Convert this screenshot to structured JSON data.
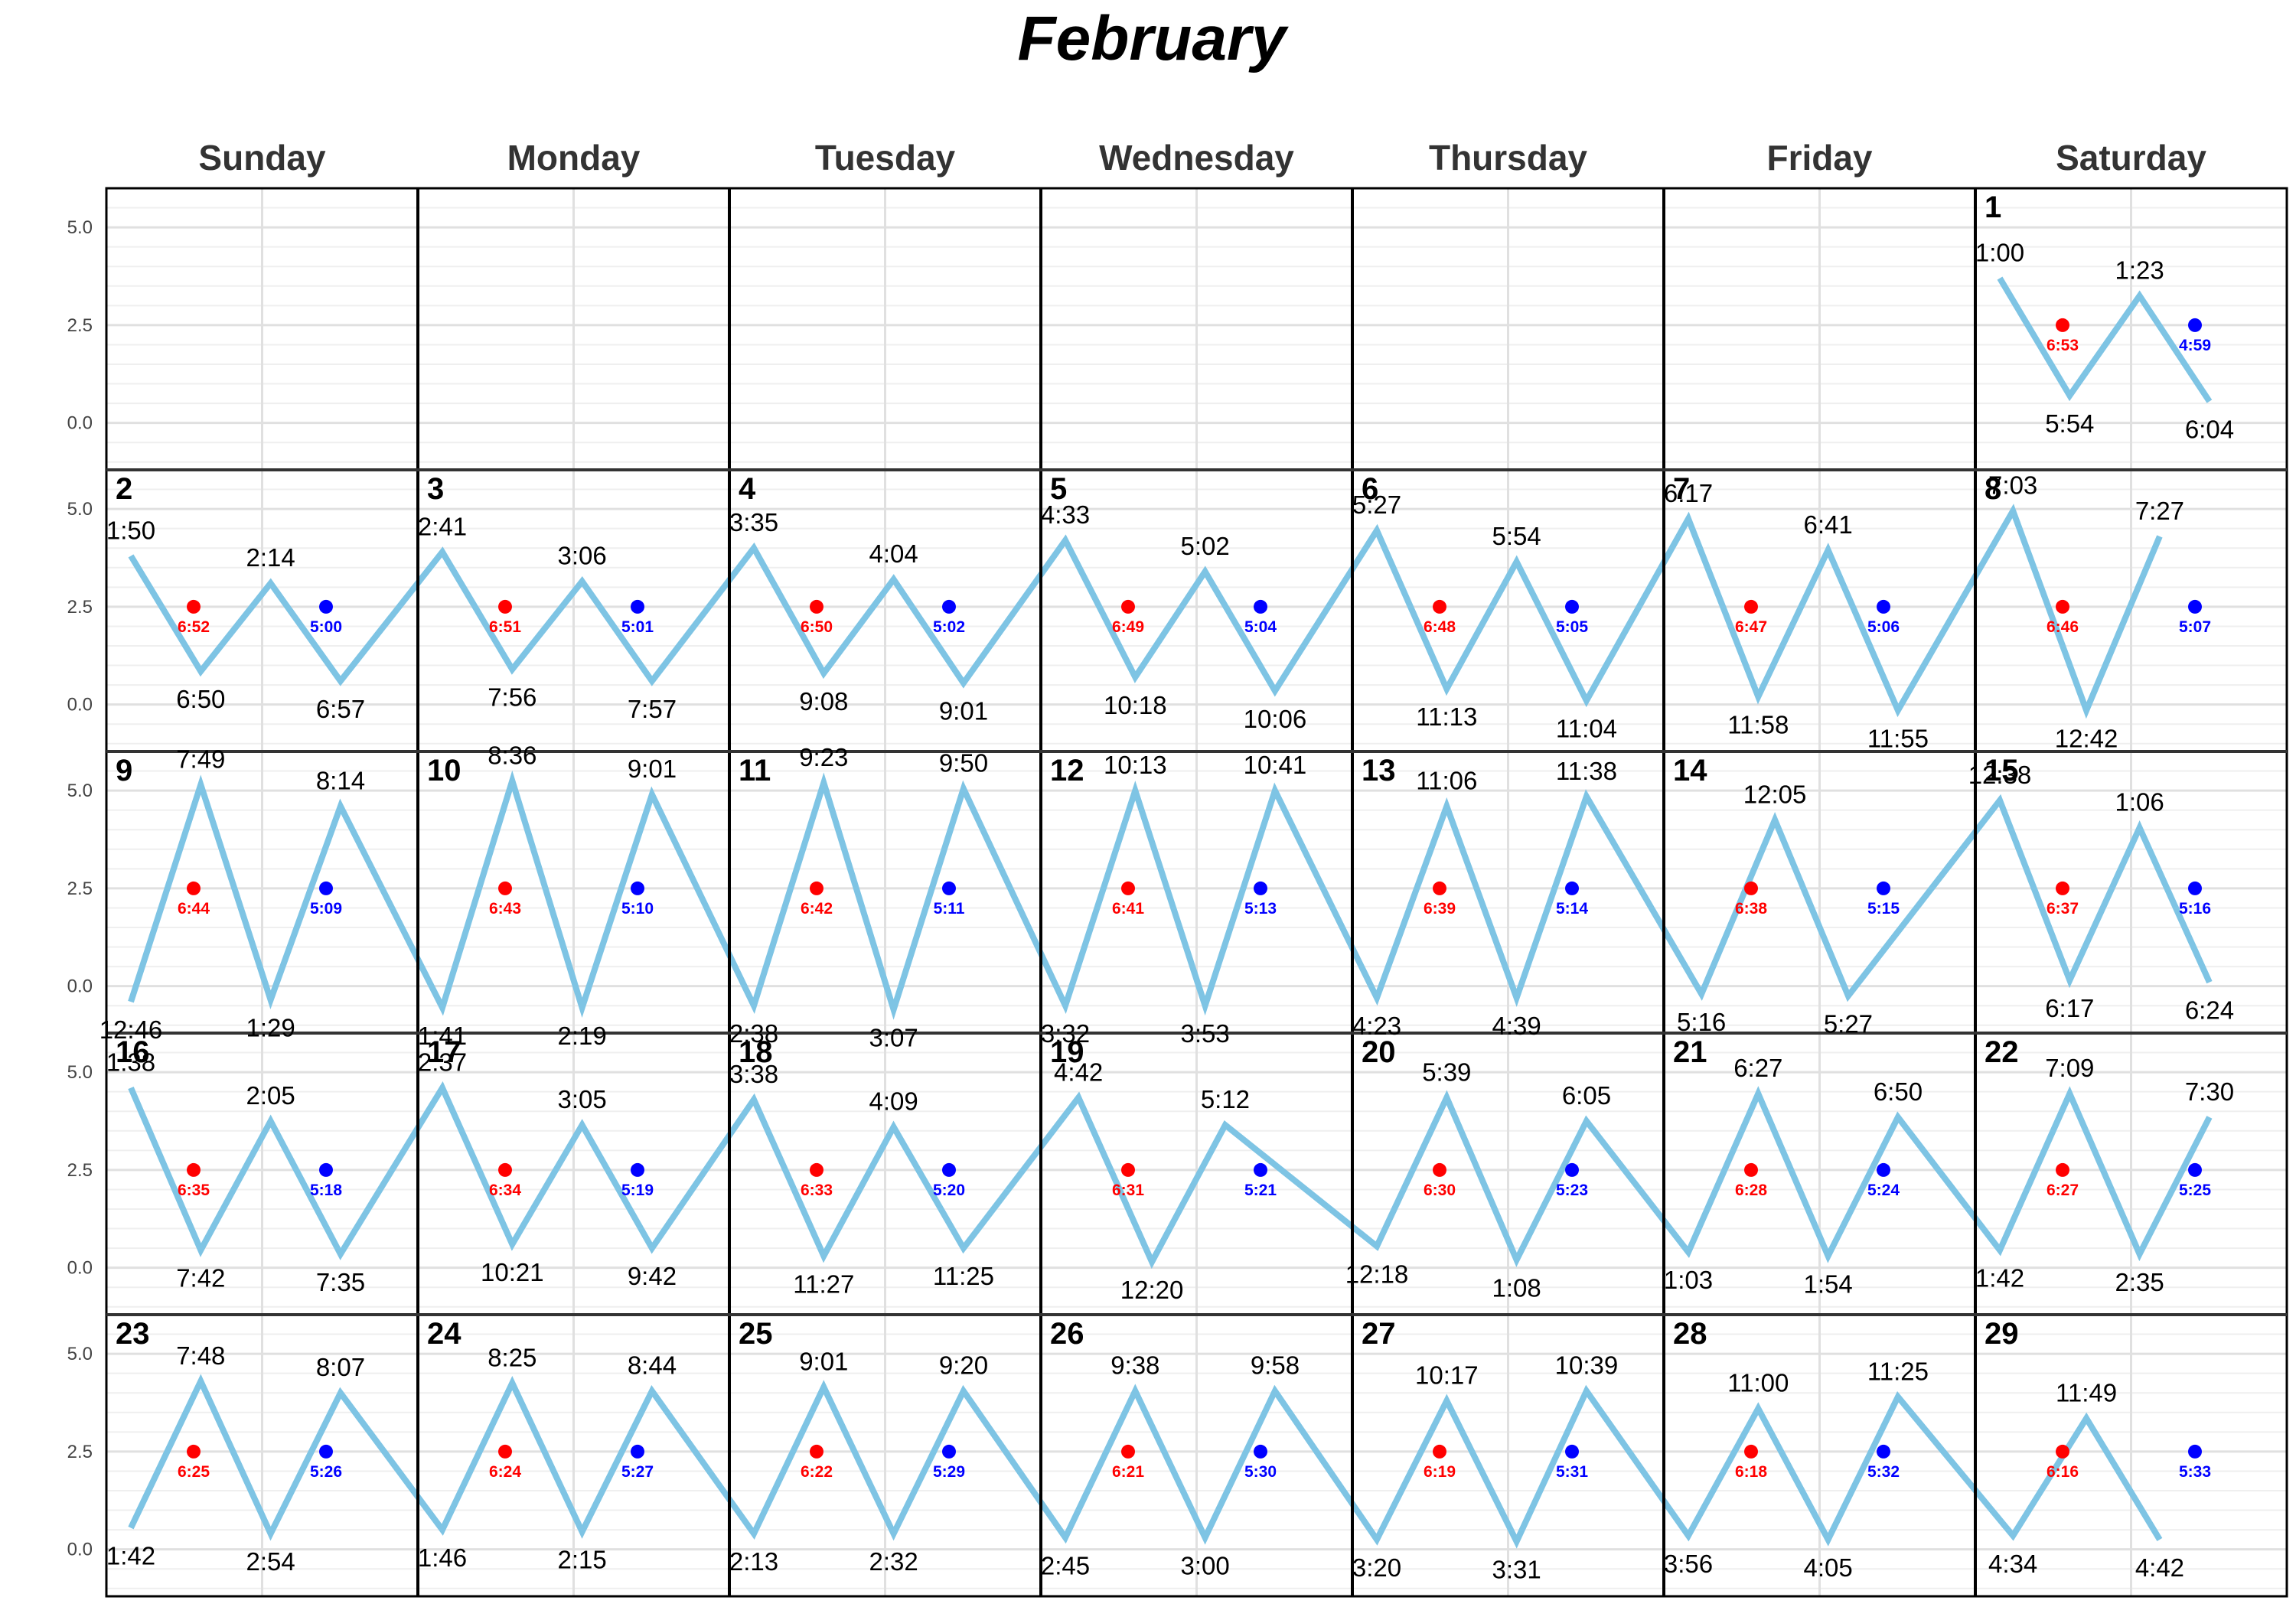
{
  "chart_data": {
    "type": "line",
    "title": "February",
    "weekdays": [
      "Sunday",
      "Monday",
      "Tuesday",
      "Wednesday",
      "Thursday",
      "Friday",
      "Saturday"
    ],
    "yticks": [
      "5.0",
      "2.5",
      "0.0"
    ],
    "ylim": [
      -1.2,
      6.0
    ],
    "grid": true,
    "colors": {
      "tide_line": "#7ec4e4",
      "sunrise": "#ff0000",
      "sunset": "#0000ff",
      "grid": "#e5e5e5",
      "cell_border": "#000000"
    },
    "first_weekday": 6,
    "days": [
      {
        "date": "1",
        "sunrise": "6:53",
        "sunset": "4:59",
        "tides": [
          {
            "time": "1:00",
            "h": 3.7
          },
          {
            "time": "5:54",
            "h": 0.7
          },
          {
            "time": "1:23",
            "h": 3.25
          },
          {
            "time": "6:04",
            "h": 0.55
          }
        ]
      },
      {
        "date": "2",
        "sunrise": "6:52",
        "sunset": "5:00",
        "tides": [
          {
            "time": "1:50",
            "h": 3.8
          },
          {
            "time": "6:50",
            "h": 0.85
          },
          {
            "time": "2:14",
            "h": 3.1
          },
          {
            "time": "6:57",
            "h": 0.6
          }
        ]
      },
      {
        "date": "3",
        "sunrise": "6:51",
        "sunset": "5:01",
        "tides": [
          {
            "time": "2:41",
            "h": 3.9
          },
          {
            "time": "7:56",
            "h": 0.9
          },
          {
            "time": "3:06",
            "h": 3.15
          },
          {
            "time": "7:57",
            "h": 0.6
          }
        ]
      },
      {
        "date": "4",
        "sunrise": "6:50",
        "sunset": "5:02",
        "tides": [
          {
            "time": "3:35",
            "h": 4.0
          },
          {
            "time": "9:08",
            "h": 0.8
          },
          {
            "time": "4:04",
            "h": 3.2
          },
          {
            "time": "9:01",
            "h": 0.55
          }
        ]
      },
      {
        "date": "5",
        "sunrise": "6:49",
        "sunset": "5:04",
        "tides": [
          {
            "time": "4:33",
            "h": 4.2
          },
          {
            "time": "10:18",
            "h": 0.7
          },
          {
            "time": "5:02",
            "h": 3.4
          },
          {
            "time": "10:06",
            "h": 0.35
          }
        ]
      },
      {
        "date": "6",
        "sunrise": "6:48",
        "sunset": "5:05",
        "tides": [
          {
            "time": "5:27",
            "h": 4.45
          },
          {
            "time": "11:13",
            "h": 0.4
          },
          {
            "time": "5:54",
            "h": 3.65
          },
          {
            "time": "11:04",
            "h": 0.1
          }
        ]
      },
      {
        "date": "7",
        "sunrise": "6:47",
        "sunset": "5:06",
        "tides": [
          {
            "time": "6:17",
            "h": 4.75
          },
          {
            "time": "11:58",
            "h": 0.2
          },
          {
            "time": "6:41",
            "h": 3.95
          },
          {
            "time": "11:55",
            "h": -0.15
          }
        ]
      },
      {
        "date": "8",
        "sunrise": "6:46",
        "sunset": "5:07",
        "tides": [
          {
            "time": "7:03",
            "h": 4.95
          },
          {
            "time": "12:42",
            "h": -0.15
          },
          {
            "time": "7:27",
            "h": 4.3
          }
        ]
      },
      {
        "date": "9",
        "sunrise": "6:44",
        "sunset": "5:09",
        "tides": [
          {
            "time": "12:46",
            "h": -0.4
          },
          {
            "time": "7:49",
            "h": 5.15
          },
          {
            "time": "1:29",
            "h": -0.35
          },
          {
            "time": "8:14",
            "h": 4.6
          }
        ]
      },
      {
        "date": "10",
        "sunrise": "6:43",
        "sunset": "5:10",
        "tides": [
          {
            "time": "1:41",
            "h": -0.55
          },
          {
            "time": "8:36",
            "h": 5.25
          },
          {
            "time": "2:19",
            "h": -0.55
          },
          {
            "time": "9:01",
            "h": 4.9
          }
        ]
      },
      {
        "date": "11",
        "sunrise": "6:42",
        "sunset": "5:11",
        "tides": [
          {
            "time": "2:38",
            "h": -0.5
          },
          {
            "time": "9:23",
            "h": 5.2
          },
          {
            "time": "3:07",
            "h": -0.6
          },
          {
            "time": "9:50",
            "h": 5.05
          }
        ]
      },
      {
        "date": "12",
        "sunrise": "6:41",
        "sunset": "5:13",
        "tides": [
          {
            "time": "3:32",
            "h": -0.5
          },
          {
            "time": "10:13",
            "h": 5.0
          },
          {
            "time": "3:53",
            "h": -0.5
          },
          {
            "time": "10:41",
            "h": 5.0
          }
        ]
      },
      {
        "date": "13",
        "sunrise": "6:39",
        "sunset": "5:14",
        "tides": [
          {
            "time": "4:23",
            "h": -0.3
          },
          {
            "time": "11:06",
            "h": 4.6
          },
          {
            "time": "4:39",
            "h": -0.3
          },
          {
            "time": "11:38",
            "h": 4.85
          }
        ]
      },
      {
        "date": "14",
        "sunrise": "6:38",
        "sunset": "5:15",
        "tides": [
          {
            "time": "5:16",
            "h": -0.2
          },
          {
            "time": "12:05",
            "h": 4.25
          },
          {
            "time": "5:27",
            "h": -0.25
          }
        ]
      },
      {
        "date": "15",
        "sunrise": "6:37",
        "sunset": "5:16",
        "tides": [
          {
            "time": "12:38",
            "h": 4.75
          },
          {
            "time": "6:17",
            "h": 0.15
          },
          {
            "time": "1:06",
            "h": 4.05
          },
          {
            "time": "6:24",
            "h": 0.1
          }
        ]
      },
      {
        "date": "16",
        "sunrise": "6:35",
        "sunset": "5:18",
        "tides": [
          {
            "time": "1:38",
            "h": 4.6
          },
          {
            "time": "7:42",
            "h": 0.45
          },
          {
            "time": "2:05",
            "h": 3.75
          },
          {
            "time": "7:35",
            "h": 0.35
          }
        ]
      },
      {
        "date": "17",
        "sunrise": "6:34",
        "sunset": "5:19",
        "tides": [
          {
            "time": "2:37",
            "h": 4.6
          },
          {
            "time": "10:21",
            "h": 0.6
          },
          {
            "time": "3:05",
            "h": 3.65
          },
          {
            "time": "9:42",
            "h": 0.5
          }
        ]
      },
      {
        "date": "18",
        "sunrise": "6:33",
        "sunset": "5:20",
        "tides": [
          {
            "time": "3:38",
            "h": 4.3
          },
          {
            "time": "11:27",
            "h": 0.3
          },
          {
            "time": "4:09",
            "h": 3.6
          },
          {
            "time": "11:25",
            "h": 0.5
          }
        ]
      },
      {
        "date": "19",
        "sunrise": "6:31",
        "sunset": "5:21",
        "tides": [
          {
            "time": "4:42",
            "h": 4.35
          },
          {
            "time": "12:20",
            "h": 0.15
          },
          {
            "time": "5:12",
            "h": 3.65
          }
        ]
      },
      {
        "date": "20",
        "sunrise": "6:30",
        "sunset": "5:23",
        "tides": [
          {
            "time": "12:18",
            "h": 0.55
          },
          {
            "time": "5:39",
            "h": 4.35
          },
          {
            "time": "1:08",
            "h": 0.2
          },
          {
            "time": "6:05",
            "h": 3.75
          }
        ]
      },
      {
        "date": "21",
        "sunrise": "6:28",
        "sunset": "5:24",
        "tides": [
          {
            "time": "1:03",
            "h": 0.4
          },
          {
            "time": "6:27",
            "h": 4.45
          },
          {
            "time": "1:54",
            "h": 0.3
          },
          {
            "time": "6:50",
            "h": 3.85
          }
        ]
      },
      {
        "date": "22",
        "sunrise": "6:27",
        "sunset": "5:25",
        "tides": [
          {
            "time": "1:42",
            "h": 0.45
          },
          {
            "time": "7:09",
            "h": 4.45
          },
          {
            "time": "2:35",
            "h": 0.35
          },
          {
            "time": "7:30",
            "h": 3.85
          }
        ]
      },
      {
        "date": "23",
        "sunrise": "6:25",
        "sunset": "5:26",
        "tides": [
          {
            "time": "1:42",
            "h": 0.55
          },
          {
            "time": "7:48",
            "h": 4.3
          },
          {
            "time": "2:54",
            "h": 0.4
          },
          {
            "time": "8:07",
            "h": 4.0
          }
        ]
      },
      {
        "date": "24",
        "sunrise": "6:24",
        "sunset": "5:27",
        "tides": [
          {
            "time": "1:46",
            "h": 0.5
          },
          {
            "time": "8:25",
            "h": 4.25
          },
          {
            "time": "2:15",
            "h": 0.45
          },
          {
            "time": "8:44",
            "h": 4.05
          }
        ]
      },
      {
        "date": "25",
        "sunrise": "6:22",
        "sunset": "5:29",
        "tides": [
          {
            "time": "2:13",
            "h": 0.4
          },
          {
            "time": "9:01",
            "h": 4.15
          },
          {
            "time": "2:32",
            "h": 0.4
          },
          {
            "time": "9:20",
            "h": 4.05
          }
        ]
      },
      {
        "date": "26",
        "sunrise": "6:21",
        "sunset": "5:30",
        "tides": [
          {
            "time": "2:45",
            "h": 0.3
          },
          {
            "time": "9:38",
            "h": 4.05
          },
          {
            "time": "3:00",
            "h": 0.3
          },
          {
            "time": "9:58",
            "h": 4.05
          }
        ]
      },
      {
        "date": "27",
        "sunrise": "6:19",
        "sunset": "5:31",
        "tides": [
          {
            "time": "3:20",
            "h": 0.25
          },
          {
            "time": "10:17",
            "h": 3.8
          },
          {
            "time": "3:31",
            "h": 0.2
          },
          {
            "time": "10:39",
            "h": 4.05
          }
        ]
      },
      {
        "date": "28",
        "sunrise": "6:18",
        "sunset": "5:32",
        "tides": [
          {
            "time": "3:56",
            "h": 0.35
          },
          {
            "time": "11:00",
            "h": 3.6
          },
          {
            "time": "4:05",
            "h": 0.25
          },
          {
            "time": "11:25",
            "h": 3.9
          }
        ]
      },
      {
        "date": "29",
        "sunrise": "6:16",
        "sunset": "5:33",
        "tides": [
          {
            "time": "4:34",
            "h": 0.35
          },
          {
            "time": "11:49",
            "h": 3.35
          },
          {
            "time": "4:42",
            "h": 0.25
          }
        ]
      }
    ]
  }
}
